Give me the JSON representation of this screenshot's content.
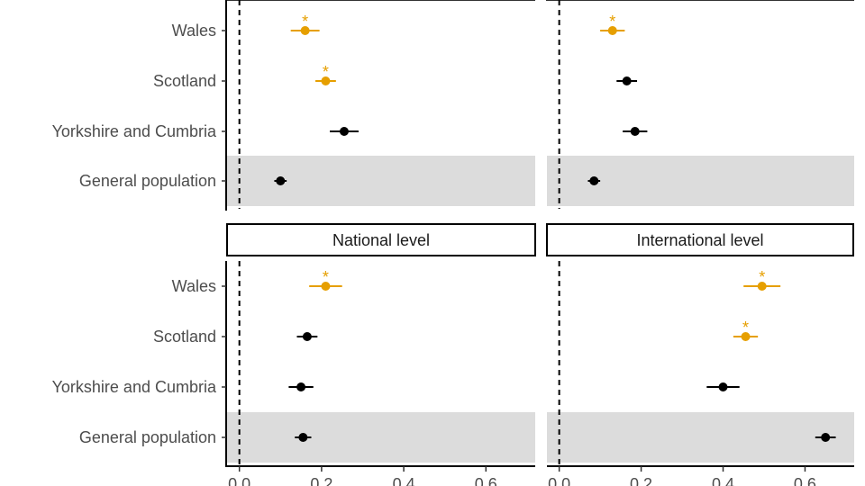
{
  "chart_data": [
    {
      "type": "scatter",
      "facet": "",
      "categories": [
        "General population",
        "Yorkshire and Cumbria",
        "Scotland",
        "Wales"
      ],
      "xlim": [
        -0.03,
        0.72
      ],
      "ticks": [
        0.0,
        0.2,
        0.4,
        0.6
      ],
      "points": [
        {
          "category": "Wales",
          "value": 0.16,
          "lo": 0.125,
          "hi": 0.195,
          "significant": true
        },
        {
          "category": "Scotland",
          "value": 0.21,
          "lo": 0.185,
          "hi": 0.235,
          "significant": true
        },
        {
          "category": "Yorkshire and Cumbria",
          "value": 0.255,
          "lo": 0.22,
          "hi": 0.29,
          "significant": false
        },
        {
          "category": "General population",
          "value": 0.1,
          "lo": 0.085,
          "hi": 0.115,
          "significant": false
        }
      ]
    },
    {
      "type": "scatter",
      "facet": "",
      "categories": [
        "General population",
        "Yorkshire and Cumbria",
        "Scotland",
        "Wales"
      ],
      "xlim": [
        -0.03,
        0.72
      ],
      "ticks": [
        0.0,
        0.2,
        0.4,
        0.6
      ],
      "points": [
        {
          "category": "Wales",
          "value": 0.13,
          "lo": 0.1,
          "hi": 0.16,
          "significant": true
        },
        {
          "category": "Scotland",
          "value": 0.165,
          "lo": 0.14,
          "hi": 0.19,
          "significant": false
        },
        {
          "category": "Yorkshire and Cumbria",
          "value": 0.185,
          "lo": 0.155,
          "hi": 0.215,
          "significant": false
        },
        {
          "category": "General population",
          "value": 0.085,
          "lo": 0.07,
          "hi": 0.1,
          "significant": false
        }
      ]
    },
    {
      "type": "scatter",
      "facet": "National level",
      "categories": [
        "General population",
        "Yorkshire and Cumbria",
        "Scotland",
        "Wales"
      ],
      "xlim": [
        -0.03,
        0.72
      ],
      "ticks": [
        0.0,
        0.2,
        0.4,
        0.6
      ],
      "points": [
        {
          "category": "Wales",
          "value": 0.21,
          "lo": 0.17,
          "hi": 0.25,
          "significant": true
        },
        {
          "category": "Scotland",
          "value": 0.165,
          "lo": 0.14,
          "hi": 0.19,
          "significant": false
        },
        {
          "category": "Yorkshire and Cumbria",
          "value": 0.15,
          "lo": 0.12,
          "hi": 0.18,
          "significant": false
        },
        {
          "category": "General population",
          "value": 0.155,
          "lo": 0.135,
          "hi": 0.175,
          "significant": false
        }
      ]
    },
    {
      "type": "scatter",
      "facet": "International level",
      "categories": [
        "General population",
        "Yorkshire and Cumbria",
        "Scotland",
        "Wales"
      ],
      "xlim": [
        -0.03,
        0.72
      ],
      "ticks": [
        0.0,
        0.2,
        0.4,
        0.6
      ],
      "points": [
        {
          "category": "Wales",
          "value": 0.495,
          "lo": 0.45,
          "hi": 0.54,
          "significant": true
        },
        {
          "category": "Scotland",
          "value": 0.455,
          "lo": 0.425,
          "hi": 0.485,
          "significant": true
        },
        {
          "category": "Yorkshire and Cumbria",
          "value": 0.4,
          "lo": 0.36,
          "hi": 0.44,
          "significant": false
        },
        {
          "category": "General population",
          "value": 0.65,
          "lo": 0.625,
          "hi": 0.675,
          "significant": false
        }
      ]
    }
  ],
  "tick_labels": [
    "0.0",
    "0.2",
    "0.4",
    "0.6"
  ],
  "significance_marker": "*",
  "highlight_category": "General population",
  "colors": {
    "significant": "#E69F00",
    "default": "#000000",
    "highlight_band": "#DCDCDC",
    "text": "#4D4D4D"
  }
}
